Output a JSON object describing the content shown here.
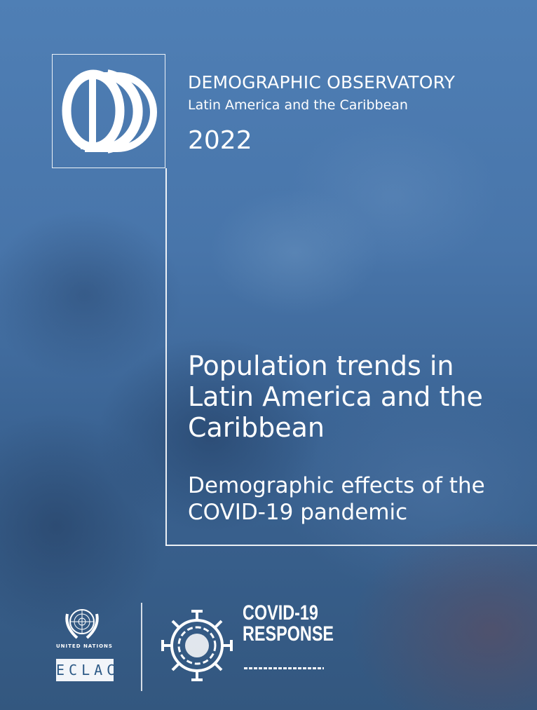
{
  "series": {
    "title": "DEMOGRAPHIC OBSERVATORY",
    "subtitle": "Latin America and the Caribbean",
    "year": "2022",
    "logo_text": "OD"
  },
  "book": {
    "title": "Population trends in Latin America and the Caribbean",
    "subtitle": "Demographic effects of the COVID-19 pandemic"
  },
  "publisher": {
    "un_label": "United Nations",
    "eclac_label": "ECLAC",
    "covid_line1": "COVID-19",
    "covid_line2": "RESPONSE"
  },
  "colors": {
    "background": "#4875aa",
    "text": "#ffffff"
  }
}
